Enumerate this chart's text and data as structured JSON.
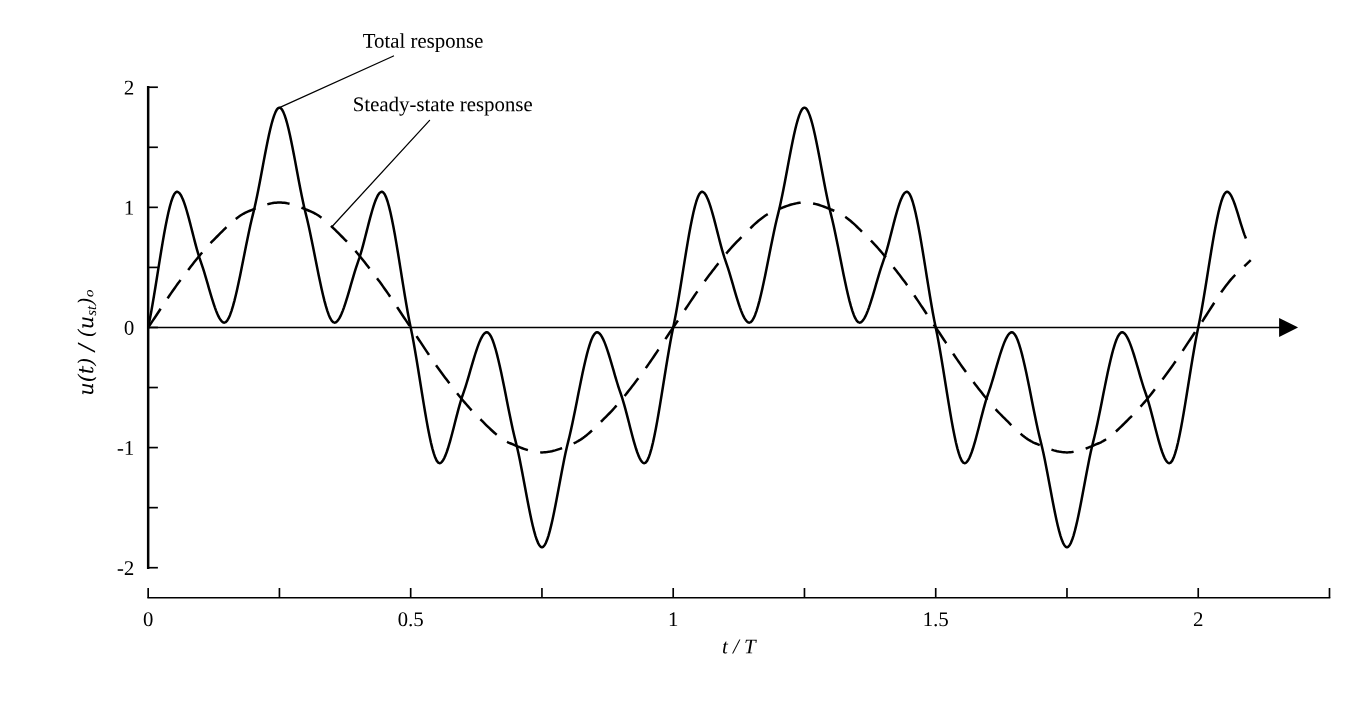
{
  "chart_data": {
    "type": "line",
    "xlabel": "t / T",
    "ylabel": "u(t) / (u$_{st}$)ₒ",
    "xlim": [
      0,
      2.25
    ],
    "ylim": [
      -2.25,
      2
    ],
    "xticks": [
      0,
      {
        "value": 0.25,
        "label": null
      },
      0.5,
      {
        "value": 0.75,
        "label": null
      },
      1,
      {
        "value": 1.25,
        "label": null
      },
      1.5,
      {
        "value": 1.75,
        "label": null
      },
      2,
      {
        "value": 2.25,
        "label": null
      }
    ],
    "yticks": [
      -2,
      {
        "value": -1.5,
        "label": null
      },
      -1,
      {
        "value": -0.5,
        "label": null
      },
      0,
      {
        "value": 0.5,
        "label": null
      },
      1,
      {
        "value": 1.5,
        "label": null
      },
      2
    ],
    "grid": false,
    "legend": false,
    "marker": "none",
    "ref_lines": [
      {
        "axis": "y",
        "value": 0,
        "color": "#000000"
      }
    ],
    "series": [
      {
        "name": "Total response",
        "color": "#000000",
        "line_style": "solid",
        "x": [
          0,
          0.055,
          0.1,
          0.145,
          0.2,
          0.25,
          0.3,
          0.355,
          0.4,
          0.445,
          0.5,
          0.555,
          0.6,
          0.645,
          0.7,
          0.75,
          0.8,
          0.855,
          0.9,
          0.945,
          1.0,
          1.055,
          1.1,
          1.145,
          1.2,
          1.25,
          1.3,
          1.355,
          1.4,
          1.445,
          1.5,
          1.555,
          1.6,
          1.645,
          1.7,
          1.75,
          1.8,
          1.855,
          1.9,
          1.945,
          2.0,
          2.055,
          2.09
        ],
        "values": [
          0,
          1.13,
          0.55,
          0.04,
          0.95,
          1.83,
          0.95,
          0.04,
          0.55,
          1.13,
          0,
          -1.13,
          -0.55,
          -0.04,
          -0.95,
          -1.83,
          -0.95,
          -0.04,
          -0.55,
          -1.13,
          0,
          1.13,
          0.55,
          0.04,
          0.95,
          1.83,
          0.95,
          0.04,
          0.55,
          1.13,
          0,
          -1.13,
          -0.55,
          -0.04,
          -0.95,
          -1.83,
          -0.95,
          -0.04,
          -0.55,
          -1.13,
          0,
          1.13,
          0.75
        ]
      },
      {
        "name": "Steady-state response",
        "color": "#000000",
        "line_style": "dashed",
        "x": [
          0,
          0.0625,
          0.125,
          0.1875,
          0.25,
          0.3125,
          0.375,
          0.4375,
          0.5,
          0.5625,
          0.625,
          0.6875,
          0.75,
          0.8125,
          0.875,
          0.9375,
          1.0,
          1.0625,
          1.125,
          1.1875,
          1.25,
          1.3125,
          1.375,
          1.4375,
          1.5,
          1.5625,
          1.625,
          1.6875,
          1.75,
          1.8125,
          1.875,
          1.9375,
          2.0,
          2.0625,
          2.1
        ],
        "values": [
          0,
          0.4,
          0.73,
          0.96,
          1.04,
          0.96,
          0.73,
          0.4,
          0,
          -0.4,
          -0.73,
          -0.96,
          -1.04,
          -0.96,
          -0.73,
          -0.4,
          0,
          0.4,
          0.73,
          0.96,
          1.04,
          0.96,
          0.73,
          0.4,
          0,
          -0.4,
          -0.73,
          -0.96,
          -1.04,
          -0.96,
          -0.73,
          -0.4,
          0,
          0.4,
          0.56
        ]
      }
    ]
  }
}
